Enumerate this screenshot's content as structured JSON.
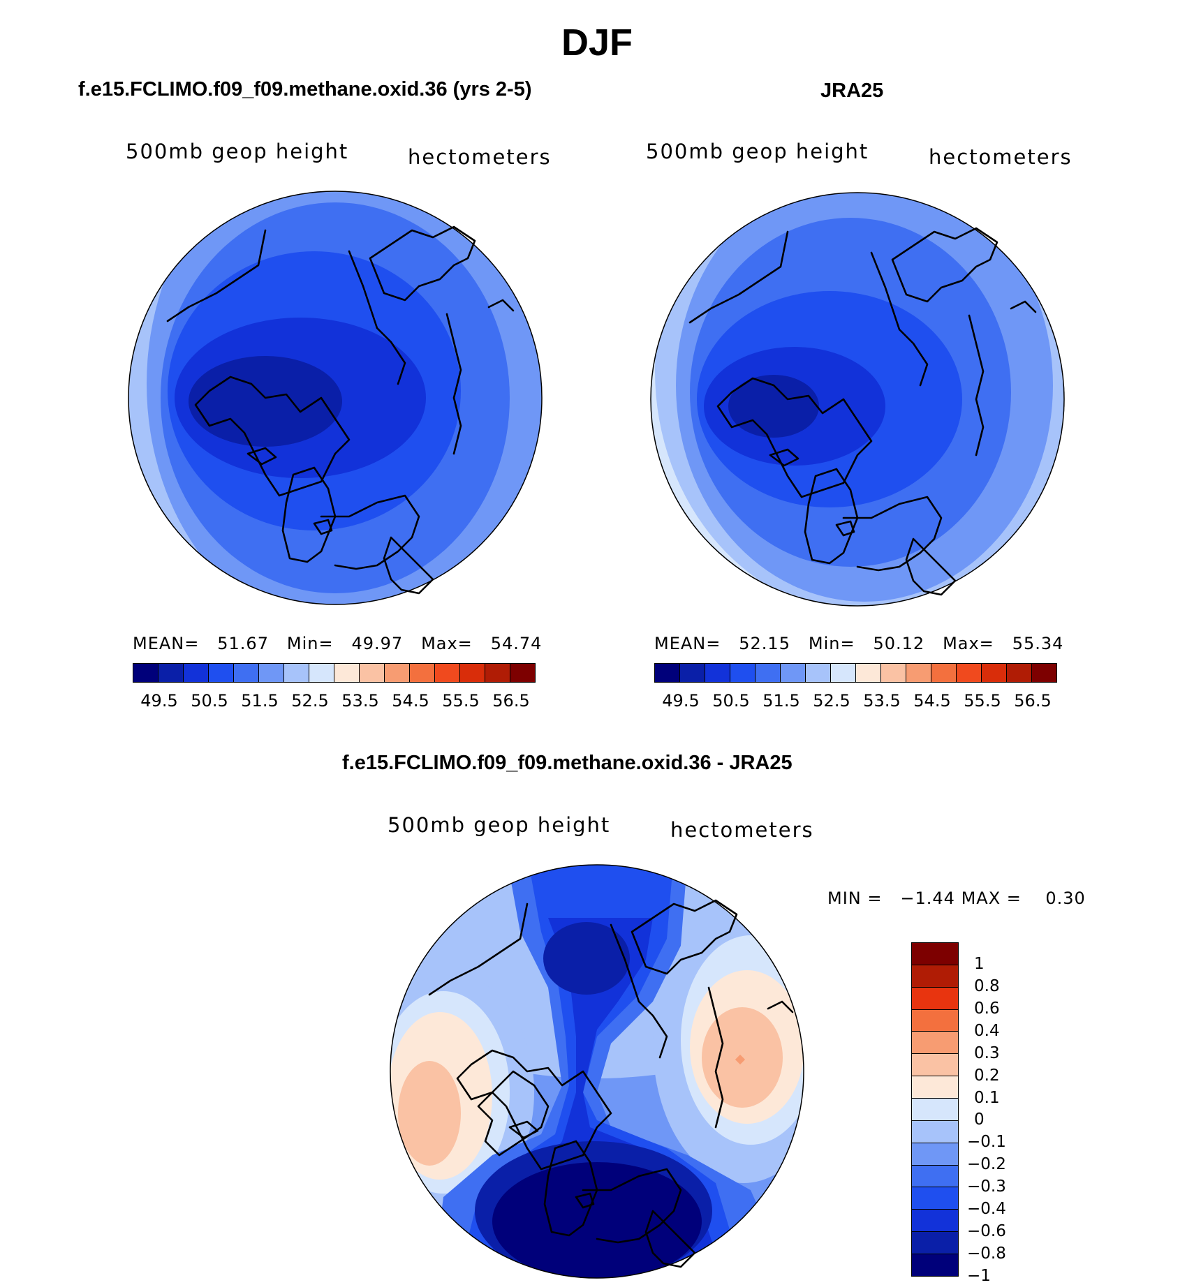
{
  "figure": {
    "season": "DJF"
  },
  "colors": {
    "abs_palette": [
      "#00007a",
      "#0a1fa8",
      "#1232d9",
      "#1f4fef",
      "#3f6ff2",
      "#6f97f6",
      "#a7c3fa",
      "#d6e6fc",
      "#fde8d8",
      "#fac2a4",
      "#f79c72",
      "#f3703e",
      "#f04a1e",
      "#d92d0a",
      "#b01c05",
      "#7d0000"
    ],
    "diff_palette": [
      "#00007a",
      "#0a1fa8",
      "#1232d9",
      "#1f4fef",
      "#3f6ff2",
      "#6f97f6",
      "#a7c3fa",
      "#d6e6fc",
      "#fde8d8",
      "#fac2a4",
      "#f79c72",
      "#f3703e",
      "#e8340f",
      "#b01c05",
      "#7d0000"
    ]
  },
  "panels": [
    {
      "title": "f.e15.FCLIMO.f09_f09.methane.oxid.36 (yrs 2-5)",
      "variable": "500mb geop height",
      "units": "hectometers",
      "stats": {
        "mean_label": "MEAN=",
        "mean": "51.67",
        "min_label": "Min=",
        "min": "49.97",
        "max_label": "Max=",
        "max": "54.74"
      },
      "colorbar_labels": [
        "49.5",
        "50.5",
        "51.5",
        "52.5",
        "53.5",
        "54.5",
        "55.5",
        "56.5"
      ]
    },
    {
      "title": "JRA25",
      "variable": "500mb geop height",
      "units": "hectometers",
      "stats": {
        "mean_label": "MEAN=",
        "mean": "52.15",
        "min_label": "Min=",
        "min": "50.12",
        "max_label": "Max=",
        "max": "55.34"
      },
      "colorbar_labels": [
        "49.5",
        "50.5",
        "51.5",
        "52.5",
        "53.5",
        "54.5",
        "55.5",
        "56.5"
      ]
    }
  ],
  "difference": {
    "title": "f.e15.FCLIMO.f09_f09.methane.oxid.36 - JRA25",
    "variable": "500mb geop height",
    "units": "hectometers",
    "min_label": "MIN =",
    "min": "−1.44",
    "max_label": "MAX =",
    "max": "0.30",
    "colorbar_labels": [
      "1",
      "0.8",
      "0.6",
      "0.4",
      "0.3",
      "0.2",
      "0.1",
      "0",
      "−0.1",
      "−0.2",
      "−0.3",
      "−0.4",
      "−0.6",
      "−0.8",
      "−1"
    ]
  }
}
